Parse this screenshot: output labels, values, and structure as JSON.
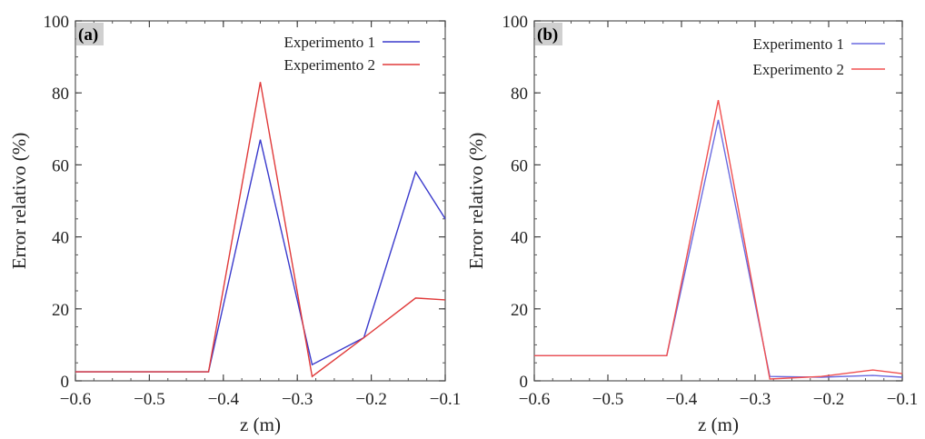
{
  "chart_data": [
    {
      "type": "line",
      "panel_label": "(a)",
      "xlabel": "z (m)",
      "ylabel": "Error relativo (%)",
      "xlim": [
        -0.6,
        -0.1
      ],
      "ylim": [
        0,
        100
      ],
      "xticks": [
        -0.6,
        -0.5,
        -0.4,
        -0.3,
        -0.2,
        -0.1
      ],
      "xtick_labels": [
        "−0.6",
        "−0.5",
        "−0.4",
        "−0.3",
        "−0.2",
        "−0.1"
      ],
      "yticks": [
        0,
        20,
        40,
        60,
        80,
        100
      ],
      "ytick_labels": [
        "0",
        "20",
        "40",
        "60",
        "80",
        "100"
      ],
      "legend_position": "top-right",
      "grid": false,
      "series": [
        {
          "name": "Experimento 1",
          "color": "#3a3acc",
          "x": [
            -0.6,
            -0.42,
            -0.35,
            -0.28,
            -0.21,
            -0.14,
            -0.1
          ],
          "y": [
            2.5,
            2.5,
            67,
            4.5,
            12,
            58,
            45
          ]
        },
        {
          "name": "Experimento 2",
          "color": "#e03a3a",
          "x": [
            -0.6,
            -0.42,
            -0.35,
            -0.28,
            -0.21,
            -0.14,
            -0.1
          ],
          "y": [
            2.5,
            2.5,
            83,
            1.2,
            12,
            23,
            22.5
          ]
        }
      ]
    },
    {
      "type": "line",
      "panel_label": "(b)",
      "xlabel": "z (m)",
      "ylabel": "Error relativo (%)",
      "xlim": [
        -0.6,
        -0.1
      ],
      "ylim": [
        0,
        100
      ],
      "xticks": [
        -0.6,
        -0.5,
        -0.4,
        -0.3,
        -0.2,
        -0.1
      ],
      "xtick_labels": [
        "−0.6",
        "−0.5",
        "−0.4",
        "−0.3",
        "−0.2",
        "−0.1"
      ],
      "yticks": [
        0,
        20,
        40,
        60,
        80,
        100
      ],
      "ytick_labels": [
        "0",
        "20",
        "40",
        "60",
        "80",
        "100"
      ],
      "legend_position": "top-right",
      "grid": false,
      "series": [
        {
          "name": "Experimento 1",
          "color": "#6a6ae0",
          "x": [
            -0.6,
            -0.42,
            -0.35,
            -0.28,
            -0.21,
            -0.14,
            -0.1
          ],
          "y": [
            7,
            7,
            72.5,
            1.2,
            1,
            1.5,
            1
          ]
        },
        {
          "name": "Experimento 2",
          "color": "#f05050",
          "x": [
            -0.6,
            -0.42,
            -0.35,
            -0.28,
            -0.21,
            -0.14,
            -0.1
          ],
          "y": [
            7,
            7,
            78,
            0.5,
            1.2,
            3,
            2
          ]
        }
      ]
    }
  ]
}
